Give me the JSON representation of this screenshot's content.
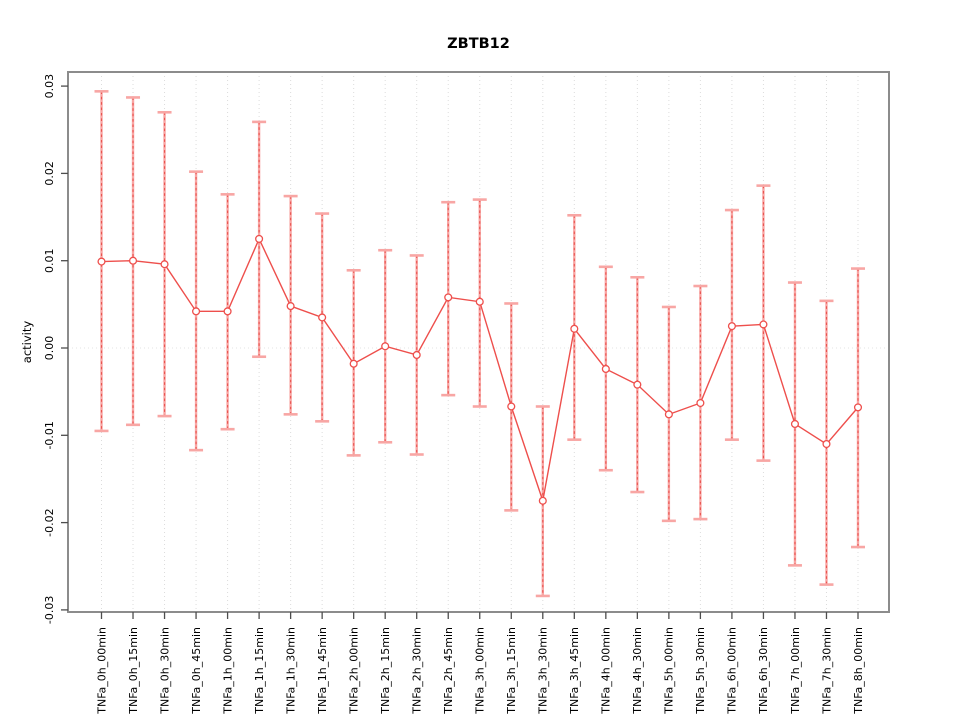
{
  "chart_data": {
    "type": "line",
    "title": "ZBTB12",
    "xlabel": "",
    "ylabel": "activity",
    "ylim": [
      -0.03,
      0.03
    ],
    "legend": "none",
    "grid": {
      "vertical": "dotted line at every category",
      "horizontal": "dotted line at zero only"
    },
    "y_ticks": [
      {
        "value": 0.03,
        "label": "0.03"
      },
      {
        "value": 0.02,
        "label": "0.02"
      },
      {
        "value": 0.01,
        "label": "0.01"
      },
      {
        "value": 0.0,
        "label": "0.00"
      },
      {
        "value": -0.01,
        "label": "-0.01"
      },
      {
        "value": -0.02,
        "label": "-0.02"
      },
      {
        "value": -0.03,
        "label": "-0.03"
      }
    ],
    "categories": [
      "TNFa_0h_00min",
      "TNFa_0h_15min",
      "TNFa_0h_30min",
      "TNFa_0h_45min",
      "TNFa_1h_00min",
      "TNFa_1h_15min",
      "TNFa_1h_30min",
      "TNFa_1h_45min",
      "TNFa_2h_00min",
      "TNFa_2h_15min",
      "TNFa_2h_30min",
      "TNFa_2h_45min",
      "TNFa_3h_00min",
      "TNFa_3h_15min",
      "TNFa_3h_30min",
      "TNFa_3h_45min",
      "TNFa_4h_00min",
      "TNFa_4h_30min",
      "TNFa_5h_00min",
      "TNFa_5h_30min",
      "TNFa_6h_00min",
      "TNFa_6h_30min",
      "TNFa_7h_00min",
      "TNFa_7h_30min",
      "TNFa_8h_00min"
    ],
    "series": [
      {
        "name": "activity",
        "marker": "open-circle",
        "values": [
          0.0099,
          0.01,
          0.0096,
          0.0042,
          0.0042,
          0.0125,
          0.0048,
          0.0035,
          -0.0018,
          0.0002,
          -0.0008,
          0.0058,
          0.0053,
          -0.0067,
          -0.0175,
          0.0022,
          -0.0024,
          -0.0042,
          -0.0076,
          -0.0063,
          0.0025,
          0.0027,
          -0.0087,
          -0.011,
          -0.0068
        ],
        "upper": [
          0.0294,
          0.0287,
          0.027,
          0.0202,
          0.0176,
          0.0259,
          0.0174,
          0.0154,
          0.0089,
          0.0112,
          0.0106,
          0.0167,
          0.017,
          0.0051,
          -0.0067,
          0.0152,
          0.0093,
          0.0081,
          0.0047,
          0.0071,
          0.0158,
          0.0186,
          0.0075,
          0.0054,
          0.0091
        ],
        "lower": [
          -0.0095,
          -0.0088,
          -0.0078,
          -0.0117,
          -0.0093,
          -0.001,
          -0.0076,
          -0.0084,
          -0.0123,
          -0.0108,
          -0.0122,
          -0.0054,
          -0.0067,
          -0.0186,
          -0.0284,
          -0.0105,
          -0.014,
          -0.0165,
          -0.0198,
          -0.0196,
          -0.0105,
          -0.0129,
          -0.0249,
          -0.0271,
          -0.0228
        ]
      }
    ],
    "colors": {
      "series_line": "#ee4f4c",
      "marker_stroke": "#ee4f4c",
      "errorbar_light": "#f8a6a4",
      "errorbar_dash": "#e95450",
      "gridline": "#dcdcdc",
      "zero_line": "#e3e3e3",
      "box": "#8c8c8c",
      "tick": "#4d4d4d",
      "text": "#000000"
    }
  }
}
